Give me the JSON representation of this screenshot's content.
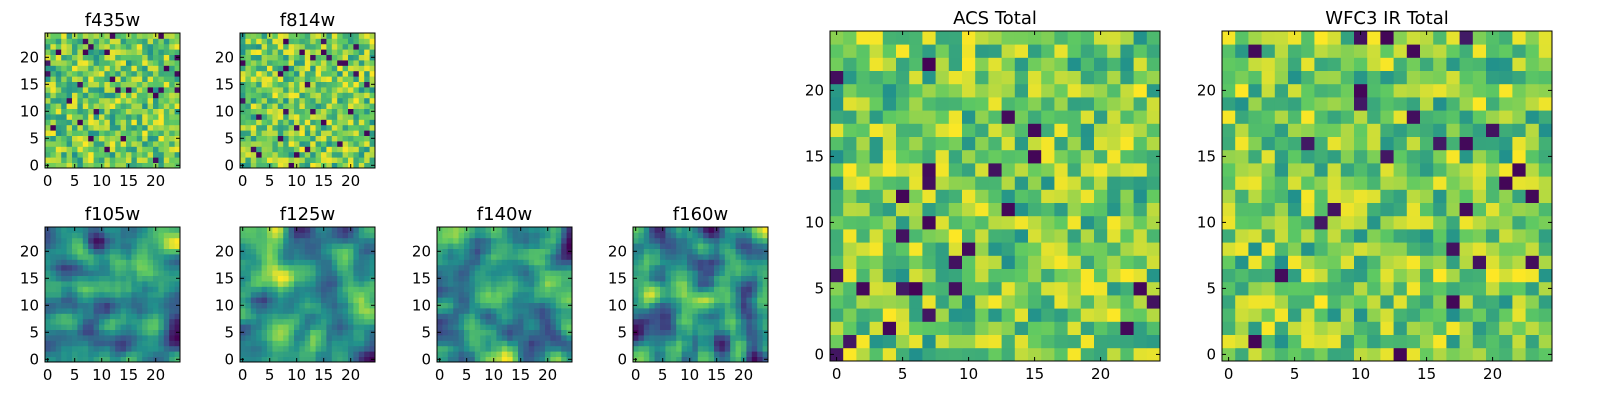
{
  "figure": {
    "colormap": "viridis",
    "colormap_stops": [
      "#440154",
      "#3b528b",
      "#21918c",
      "#5ec962",
      "#fde725"
    ],
    "frame_color": "#000000",
    "grid": false
  },
  "chart_data": [
    {
      "type": "heatmap",
      "title": "f435w",
      "rows": 25,
      "cols": 25,
      "xlim": [
        -0.5,
        24.5
      ],
      "ylim": [
        -0.5,
        24.5
      ],
      "xticks": [
        0,
        5,
        10,
        15,
        20
      ],
      "yticks": [
        0,
        5,
        10,
        15,
        20
      ],
      "pattern": "noise-fine",
      "seed": 11,
      "value_range": [
        0,
        1
      ]
    },
    {
      "type": "heatmap",
      "title": "f814w",
      "rows": 25,
      "cols": 25,
      "xlim": [
        -0.5,
        24.5
      ],
      "ylim": [
        -0.5,
        24.5
      ],
      "xticks": [
        0,
        5,
        10,
        15,
        20
      ],
      "yticks": [
        0,
        5,
        10,
        15,
        20
      ],
      "pattern": "noise-fine",
      "seed": 23,
      "value_range": [
        0,
        1
      ]
    },
    {
      "type": "heatmap",
      "title": "f105w",
      "rows": 25,
      "cols": 25,
      "xlim": [
        -0.5,
        24.5
      ],
      "ylim": [
        -0.5,
        24.5
      ],
      "xticks": [
        0,
        5,
        10,
        15,
        20
      ],
      "yticks": [
        0,
        5,
        10,
        15,
        20
      ],
      "pattern": "noise-smooth",
      "seed": 37,
      "value_range": [
        0,
        1
      ]
    },
    {
      "type": "heatmap",
      "title": "f125w",
      "rows": 25,
      "cols": 25,
      "xlim": [
        -0.5,
        24.5
      ],
      "ylim": [
        -0.5,
        24.5
      ],
      "xticks": [
        0,
        5,
        10,
        15,
        20
      ],
      "yticks": [
        0,
        5,
        10,
        15,
        20
      ],
      "pattern": "noise-smooth",
      "seed": 41,
      "value_range": [
        0,
        1
      ]
    },
    {
      "type": "heatmap",
      "title": "f140w",
      "rows": 25,
      "cols": 25,
      "xlim": [
        -0.5,
        24.5
      ],
      "ylim": [
        -0.5,
        24.5
      ],
      "xticks": [
        0,
        5,
        10,
        15,
        20
      ],
      "yticks": [
        0,
        5,
        10,
        15,
        20
      ],
      "pattern": "noise-smooth",
      "seed": 53,
      "value_range": [
        0,
        1
      ]
    },
    {
      "type": "heatmap",
      "title": "f160w",
      "rows": 25,
      "cols": 25,
      "xlim": [
        -0.5,
        24.5
      ],
      "ylim": [
        -0.5,
        24.5
      ],
      "xticks": [
        0,
        5,
        10,
        15,
        20
      ],
      "yticks": [
        0,
        5,
        10,
        15,
        20
      ],
      "pattern": "noise-smooth",
      "seed": 67,
      "value_range": [
        0,
        1
      ]
    },
    {
      "type": "heatmap",
      "title": "ACS Total",
      "rows": 25,
      "cols": 25,
      "xlim": [
        -0.5,
        24.5
      ],
      "ylim": [
        -0.5,
        24.5
      ],
      "xticks": [
        0,
        5,
        10,
        15,
        20
      ],
      "yticks": [
        0,
        5,
        10,
        15,
        20
      ],
      "pattern": "noise-fine",
      "seed": 79,
      "value_range": [
        0,
        1
      ]
    },
    {
      "type": "heatmap",
      "title": "WFC3 IR Total",
      "rows": 25,
      "cols": 25,
      "xlim": [
        -0.5,
        24.5
      ],
      "ylim": [
        -0.5,
        24.5
      ],
      "xticks": [
        0,
        5,
        10,
        15,
        20
      ],
      "yticks": [
        0,
        5,
        10,
        15,
        20
      ],
      "pattern": "noise-fine",
      "seed": 97,
      "value_range": [
        0,
        1
      ]
    }
  ]
}
